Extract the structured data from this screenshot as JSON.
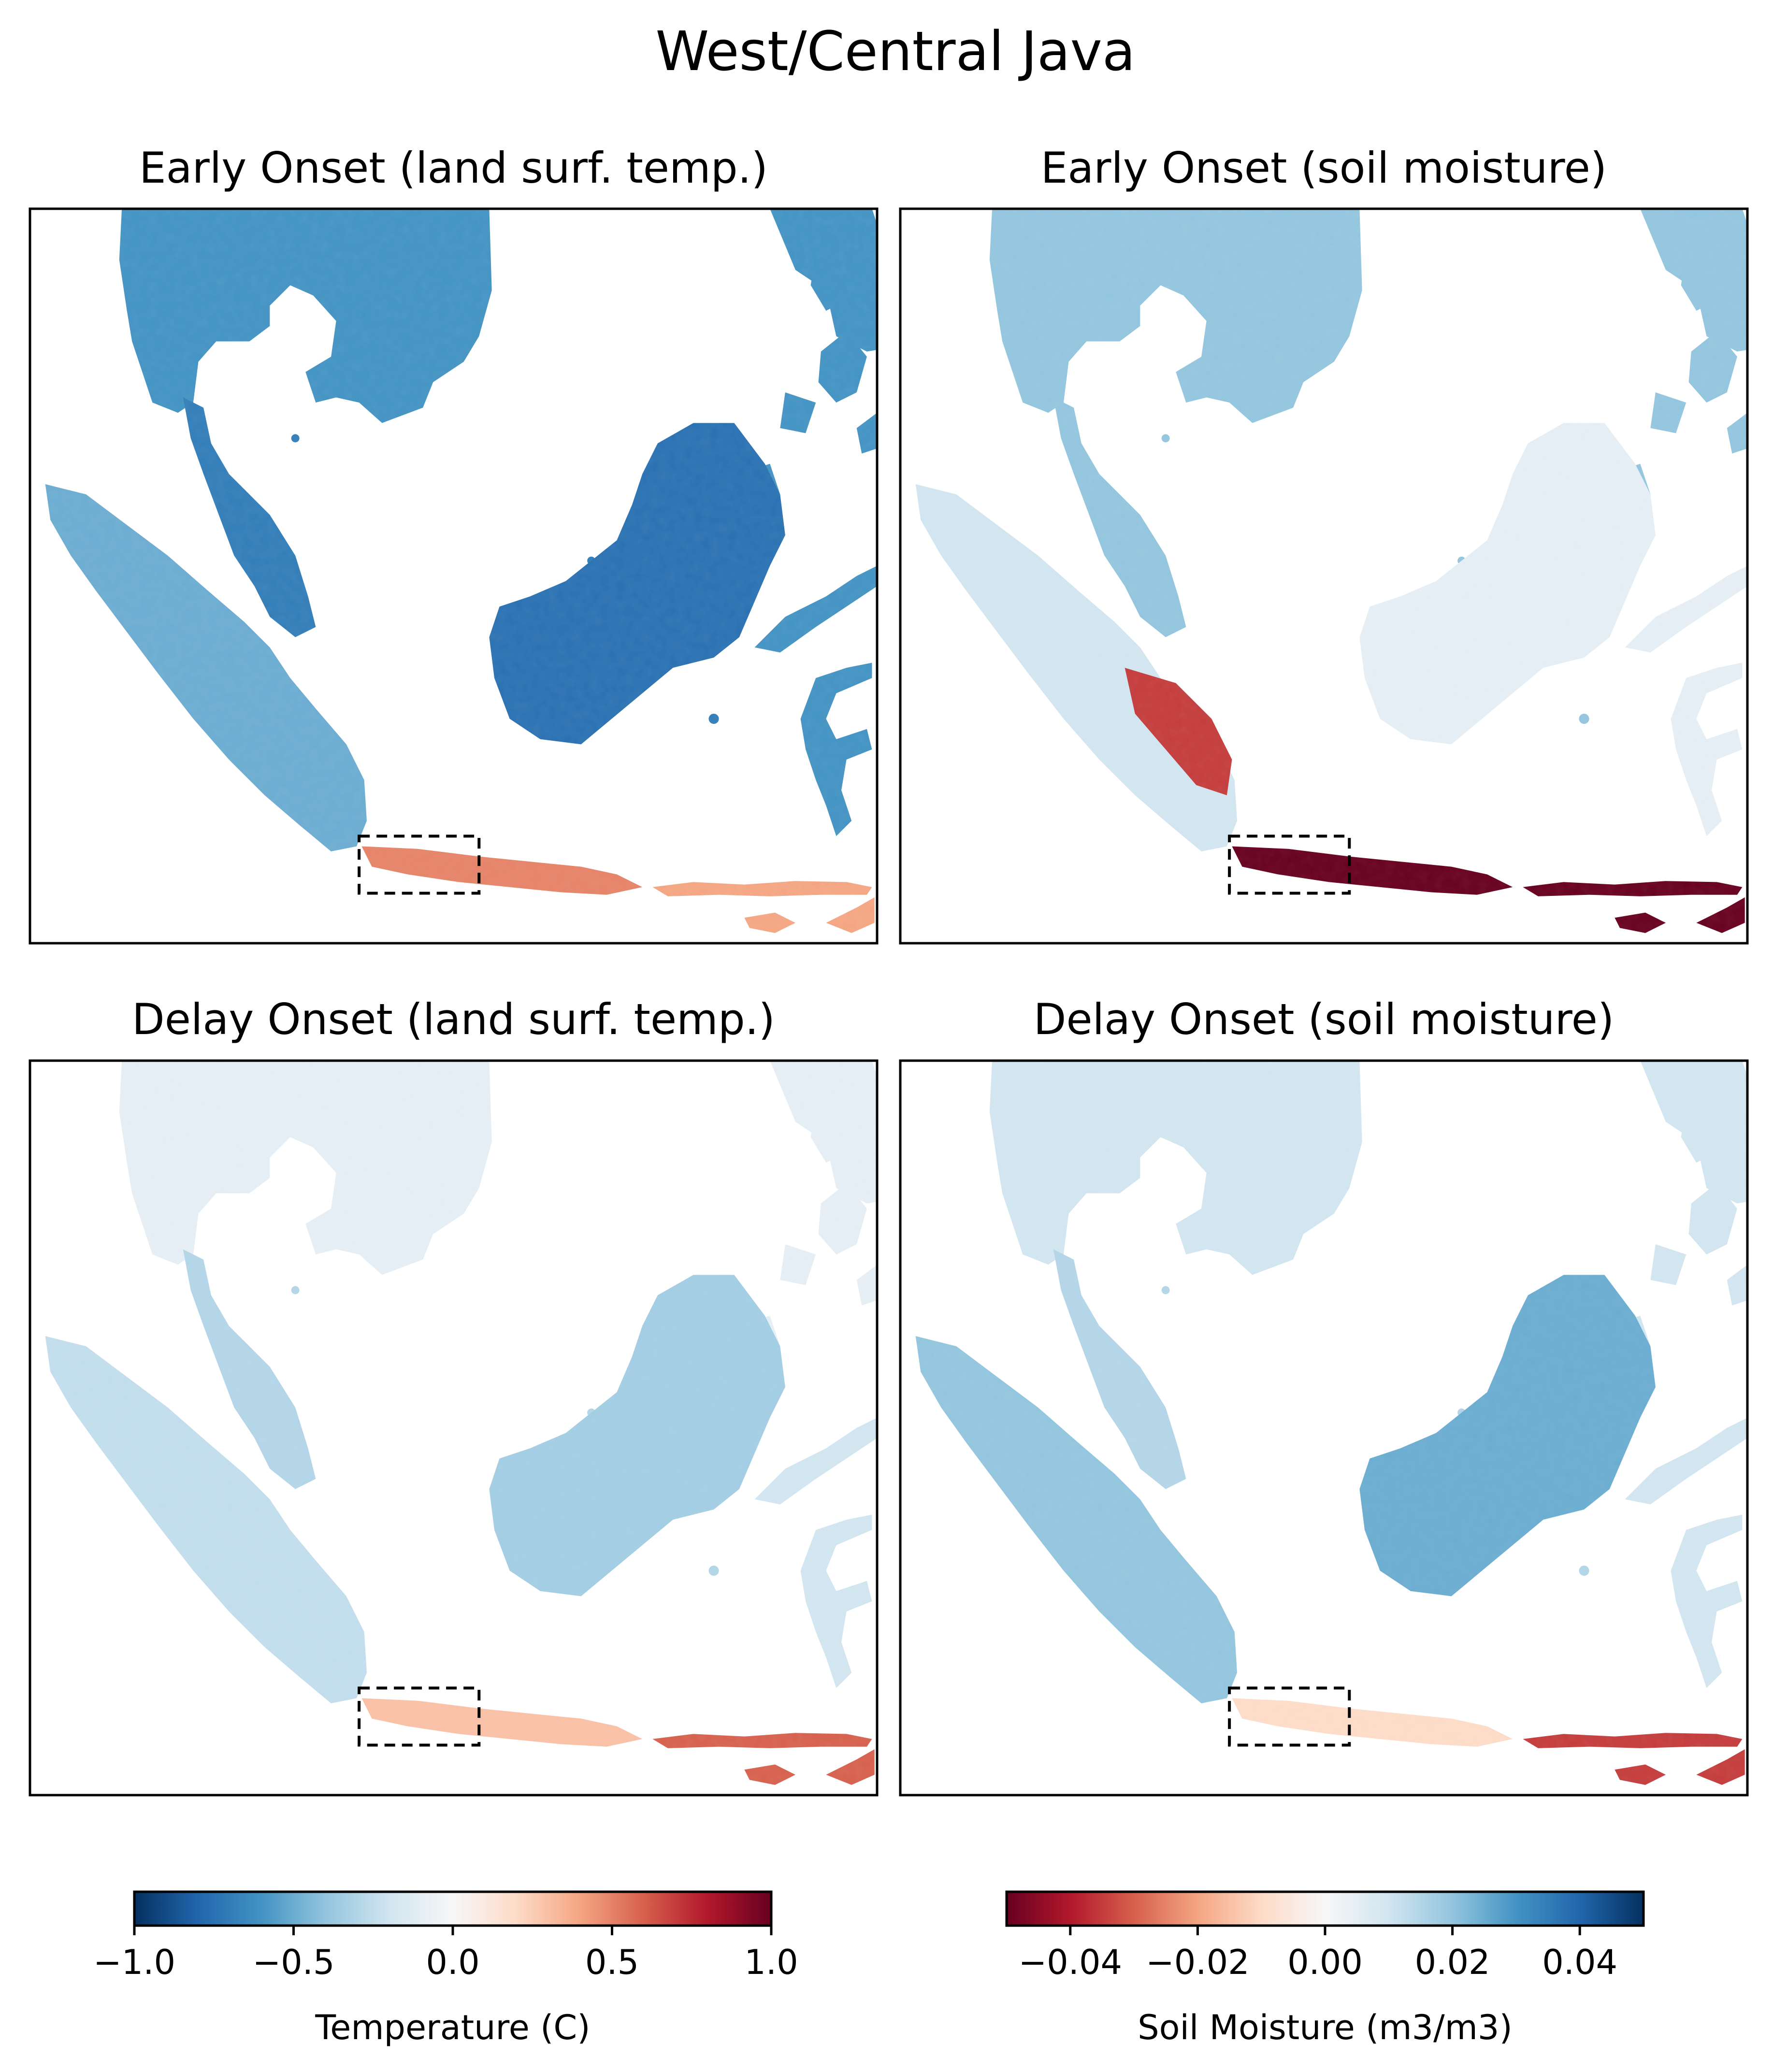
{
  "figure": {
    "title": "West/Central Java"
  },
  "chart_data": [
    {
      "type": "heatmap",
      "title": "Early Onset (land surf. temp.)",
      "variable": "land surface temperature anomaly",
      "units": "C",
      "region_box": "West/Central Java (dashed box)",
      "summary": {
        "Mainland SE Asia": -0.6,
        "Malay Peninsula": -0.7,
        "Sumatra": -0.5,
        "Borneo": -0.75,
        "Sulawesi": -0.6,
        "West/Central Java": 0.5,
        "East Java": 0.4
      }
    },
    {
      "type": "heatmap",
      "title": "Early Onset (soil moisture)",
      "variable": "soil moisture anomaly",
      "units": "m3/m3",
      "region_box": "West/Central Java (dashed box)",
      "summary": {
        "Mainland SE Asia": 0.02,
        "Malay Peninsula": 0.02,
        "Sumatra": 0.01,
        "South Sumatra": -0.035,
        "Borneo": 0.005,
        "Sulawesi": 0.005,
        "West/Central Java": -0.05,
        "East Java": -0.05
      }
    },
    {
      "type": "heatmap",
      "title": "Delay Onset (land surf. temp.)",
      "variable": "land surface temperature anomaly",
      "units": "C",
      "region_box": "West/Central Java (dashed box)",
      "summary": {
        "Mainland SE Asia": -0.1,
        "Malay Peninsula": -0.3,
        "Sumatra": -0.25,
        "Borneo": -0.35,
        "Sulawesi": -0.2,
        "West/Central Java": 0.3,
        "East Java": 0.6
      }
    },
    {
      "type": "heatmap",
      "title": "Delay Onset (soil moisture)",
      "variable": "soil moisture anomaly",
      "units": "m3/m3",
      "region_box": "West/Central Java (dashed box)",
      "summary": {
        "Mainland SE Asia": 0.01,
        "Malay Peninsula": 0.015,
        "Sumatra": 0.02,
        "Borneo": 0.025,
        "Sulawesi": 0.01,
        "West/Central Java": -0.01,
        "East Java": -0.035
      }
    }
  ],
  "colorbars": [
    {
      "label": "Temperature (C)",
      "colormap": "RdBu_r",
      "range": [
        -1.0,
        1.0
      ],
      "ticks": [
        -1.0,
        -0.5,
        0.0,
        0.5,
        1.0
      ],
      "tick_labels": [
        "−1.0",
        "−0.5",
        "0.0",
        "0.5",
        "1.0"
      ],
      "colors": [
        "#053061",
        "#2166ac",
        "#4393c3",
        "#92c5de",
        "#d1e5f0",
        "#f7f7f7",
        "#fddbc7",
        "#f4a582",
        "#d6604d",
        "#b2182b",
        "#67001f"
      ]
    },
    {
      "label": "Soil Moisture (m3/m3)",
      "colormap": "RdBu",
      "range": [
        -0.05,
        0.05
      ],
      "ticks": [
        -0.04,
        -0.02,
        0.0,
        0.02,
        0.04
      ],
      "tick_labels": [
        "−0.04",
        "−0.02",
        "0.00",
        "0.02",
        "0.04"
      ],
      "colors": [
        "#67001f",
        "#b2182b",
        "#d6604d",
        "#f4a582",
        "#fddbc7",
        "#f7f7f7",
        "#d1e5f0",
        "#92c5de",
        "#4393c3",
        "#2166ac",
        "#053061"
      ]
    }
  ]
}
